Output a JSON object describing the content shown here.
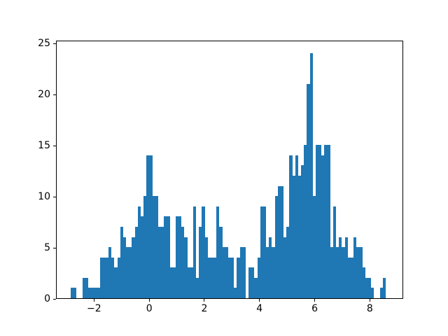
{
  "figure": {
    "background": "#ffffff",
    "title": ""
  },
  "chart_data": {
    "type": "histogram",
    "title": "",
    "xlabel": "",
    "ylabel": "",
    "legend": null,
    "grid": false,
    "bar_color": "#1f77b4",
    "xlim": [
      -3.38,
      9.21
    ],
    "ylim": [
      0,
      25.3
    ],
    "xticks": {
      "values": [
        -2,
        0,
        2,
        4,
        6,
        8
      ],
      "labels": [
        "−2",
        "0",
        "2",
        "4",
        "6",
        "8"
      ]
    },
    "yticks": {
      "values": [
        0,
        5,
        10,
        15,
        20,
        25
      ],
      "labels": [
        "0",
        "5",
        "10",
        "15",
        "20",
        "25"
      ]
    },
    "bins": {
      "start": -2.848,
      "width": 0.10575,
      "counts": [
        1,
        1,
        0,
        0,
        2,
        2,
        1,
        1,
        1,
        1,
        4,
        4,
        4,
        5,
        4,
        3,
        4,
        7,
        6,
        5,
        5,
        6,
        7,
        9,
        8,
        10,
        14,
        14,
        10,
        10,
        7,
        7,
        8,
        8,
        3,
        3,
        8,
        8,
        7,
        6,
        3,
        3,
        9,
        2,
        7,
        9,
        6,
        4,
        4,
        4,
        9,
        7,
        5,
        5,
        4,
        4,
        1,
        4,
        5,
        5,
        0,
        3,
        3,
        2,
        4,
        9,
        9,
        5,
        6,
        5,
        10,
        11,
        11,
        6,
        7,
        14,
        12,
        14,
        12,
        13,
        15,
        21,
        24,
        10,
        15,
        15,
        14,
        15,
        15,
        5,
        9,
        5,
        6,
        5,
        6,
        4,
        4,
        6,
        5,
        5,
        3,
        2,
        2,
        1,
        0,
        0,
        1,
        2
      ]
    }
  }
}
